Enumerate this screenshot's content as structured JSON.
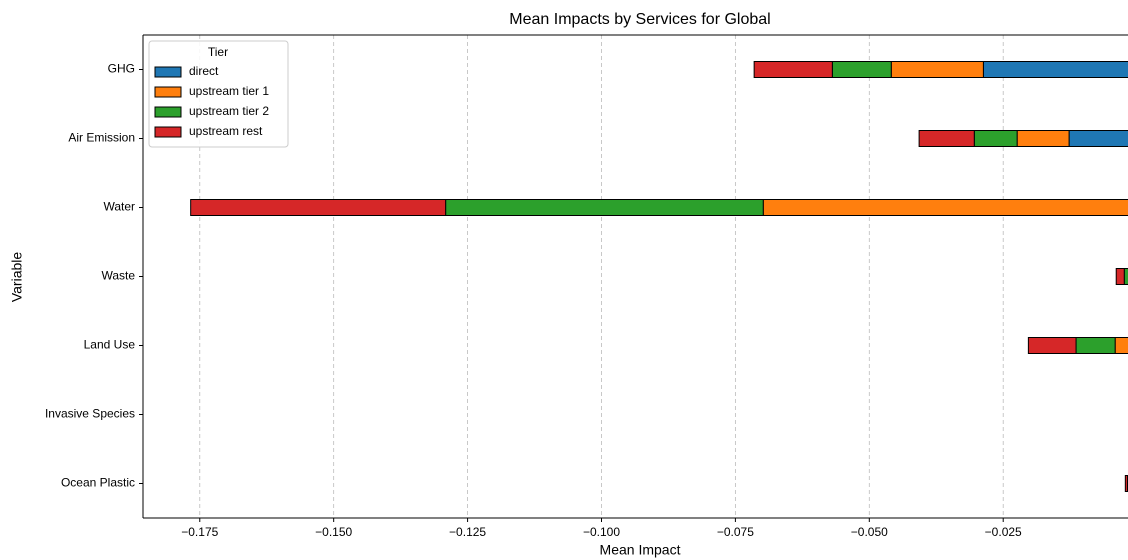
{
  "chart_data": {
    "type": "barh_stacked",
    "title": "Mean Impacts by Services for Global",
    "x_label": "Mean Impact",
    "y_label": "Variable",
    "categories": [
      "GHG",
      "Air Emission",
      "Water",
      "Waste",
      "Land Use",
      "Invasive Species",
      "Ocean Plastic"
    ],
    "series": [
      {
        "name": "direct",
        "color": "#1f77b4",
        "values": [
          -0.0287,
          -0.0127,
          0,
          -0.0005,
          -0.001,
          0,
          -0.0008
        ]
      },
      {
        "name": "upstream tier 1",
        "color": "#ff7f0e",
        "values": [
          -0.0172,
          -0.0097,
          -0.0698,
          -0.0008,
          -0.0031,
          0,
          -0.0006
        ]
      },
      {
        "name": "upstream tier 2",
        "color": "#2ca02c",
        "values": [
          -0.011,
          -0.008,
          -0.0593,
          -0.0011,
          -0.0073,
          0,
          -0.0004
        ]
      },
      {
        "name": "upstream rest",
        "color": "#d62728",
        "values": [
          -0.0146,
          -0.0103,
          -0.0476,
          -0.0015,
          -0.0089,
          0,
          -0.0004
        ]
      }
    ],
    "legend_title": "Tier",
    "legend": "upper left",
    "xlim": [
      -0.1856,
      -0.0017
    ],
    "xticks": [
      {
        "value": -0.175,
        "label": "−0.175"
      },
      {
        "value": -0.15,
        "label": "−0.150"
      },
      {
        "value": -0.125,
        "label": "−0.125"
      },
      {
        "value": -0.1,
        "label": "−0.100"
      },
      {
        "value": -0.075,
        "label": "−0.075"
      },
      {
        "value": -0.05,
        "label": "−0.050"
      },
      {
        "value": -0.025,
        "label": "−0.025"
      }
    ],
    "grid": "x"
  }
}
